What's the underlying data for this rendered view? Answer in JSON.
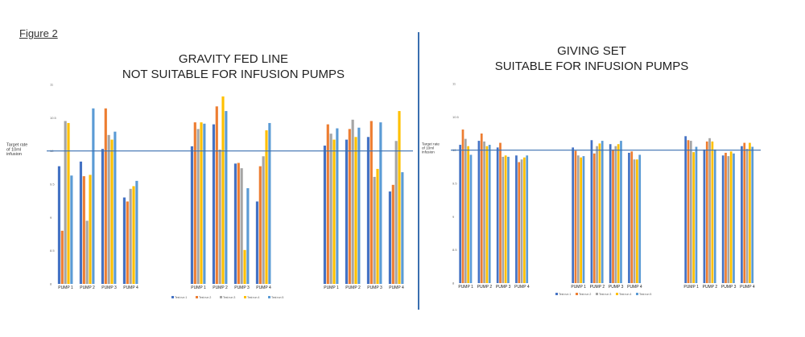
{
  "figure_label": "Figure 2",
  "colors": {
    "series": [
      "#4472c4",
      "#ed7d31",
      "#a5a5a5",
      "#ffc000",
      "#5b9bd5"
    ],
    "target_line": "#3a6fb0",
    "divider": "#3a6fb0"
  },
  "chart_data": [
    {
      "type": "bar",
      "title_lines": [
        "GRAVITY FED LINE",
        "NOT SUITABLE FOR INFUSION PUMPS"
      ],
      "target_label_lines": [
        "Target rate",
        "of 10ml",
        "infusion"
      ],
      "target_value": 10,
      "ylim": [
        8,
        11
      ],
      "yticks": [
        "8",
        "8.5",
        "9",
        "9.5",
        "10",
        "10.5",
        "11"
      ],
      "series_names": [
        "Test run 1",
        "Test run 2",
        "Test run 3",
        "Test run 4",
        "Test run 5"
      ],
      "groups": [
        {
          "categories": [
            "PUMP 1",
            "PUMP 2",
            "PUMP 3",
            "PUMP 4"
          ],
          "values": [
            [
              9.77,
              8.8,
              10.45,
              10.42,
              9.63
            ],
            [
              9.84,
              9.62,
              8.95,
              9.64,
              10.64
            ],
            [
              10.03,
              10.64,
              10.24,
              10.17,
              10.29
            ],
            [
              9.3,
              9.24,
              9.43,
              9.47,
              9.55
            ]
          ]
        },
        {
          "categories": [
            "PUMP 1",
            "PUMP 2",
            "PUMP 3",
            "PUMP 4"
          ],
          "values": [
            [
              10.07,
              10.43,
              10.33,
              10.43,
              10.41
            ],
            [
              10.4,
              10.67,
              10.02,
              10.82,
              10.6
            ],
            [
              9.81,
              9.82,
              9.74,
              8.51,
              9.44
            ],
            [
              9.24,
              9.77,
              9.92,
              10.31,
              10.42
            ]
          ]
        },
        {
          "categories": [
            "PUMP 1",
            "PUMP 2",
            "PUMP 3",
            "PUMP 4"
          ],
          "values": [
            [
              10.08,
              10.4,
              10.26,
              10.17,
              10.34
            ],
            [
              10.17,
              10.33,
              10.47,
              10.21,
              10.35
            ],
            [
              10.21,
              10.45,
              9.61,
              9.73,
              10.43
            ],
            [
              9.39,
              9.49,
              10.15,
              10.6,
              9.68
            ]
          ]
        }
      ]
    },
    {
      "type": "bar",
      "title_lines": [
        "GIVING SET",
        "SUITABLE FOR INFUSION PUMPS"
      ],
      "target_label_lines": [
        "Target rate",
        "of 10ml",
        "infusion"
      ],
      "target_value": 10,
      "ylim": [
        8,
        11
      ],
      "yticks": [
        "8",
        "8.5",
        "9",
        "9.5",
        "10",
        "10.5",
        "11"
      ],
      "series_names": [
        "Test run 1",
        "Test run 2",
        "Test run 3",
        "Test run 4",
        "Test run 5"
      ],
      "groups": [
        {
          "categories": [
            "PUMP 1",
            "PUMP 2",
            "PUMP 3",
            "PUMP 4"
          ],
          "values": [
            [
              10.08,
              10.31,
              10.17,
              10.06,
              9.93
            ],
            [
              10.14,
              10.25,
              10.13,
              10.06,
              10.08
            ],
            [
              10.04,
              10.11,
              9.9,
              9.92,
              9.9
            ],
            [
              9.92,
              9.82,
              9.86,
              9.89,
              9.92
            ]
          ]
        },
        {
          "categories": [
            "PUMP 1",
            "PUMP 2",
            "PUMP 3",
            "PUMP 4"
          ],
          "values": [
            [
              10.04,
              9.99,
              9.92,
              9.89,
              9.91
            ],
            [
              10.15,
              9.95,
              10.06,
              10.1,
              10.14
            ],
            [
              10.09,
              10.01,
              10.06,
              10.09,
              10.14
            ],
            [
              9.96,
              9.98,
              9.86,
              9.86,
              9.93
            ]
          ]
        },
        {
          "categories": [
            "PUMP 1",
            "PUMP 2",
            "PUMP 3",
            "PUMP 4"
          ],
          "values": [
            [
              10.21,
              10.15,
              10.14,
              9.97,
              10.05
            ],
            [
              10.01,
              10.13,
              10.18,
              10.13,
              10.01
            ],
            [
              9.92,
              9.96,
              9.91,
              9.98,
              9.95
            ],
            [
              10.06,
              10.11,
              10.02,
              10.11,
              10.05
            ]
          ]
        }
      ]
    }
  ]
}
